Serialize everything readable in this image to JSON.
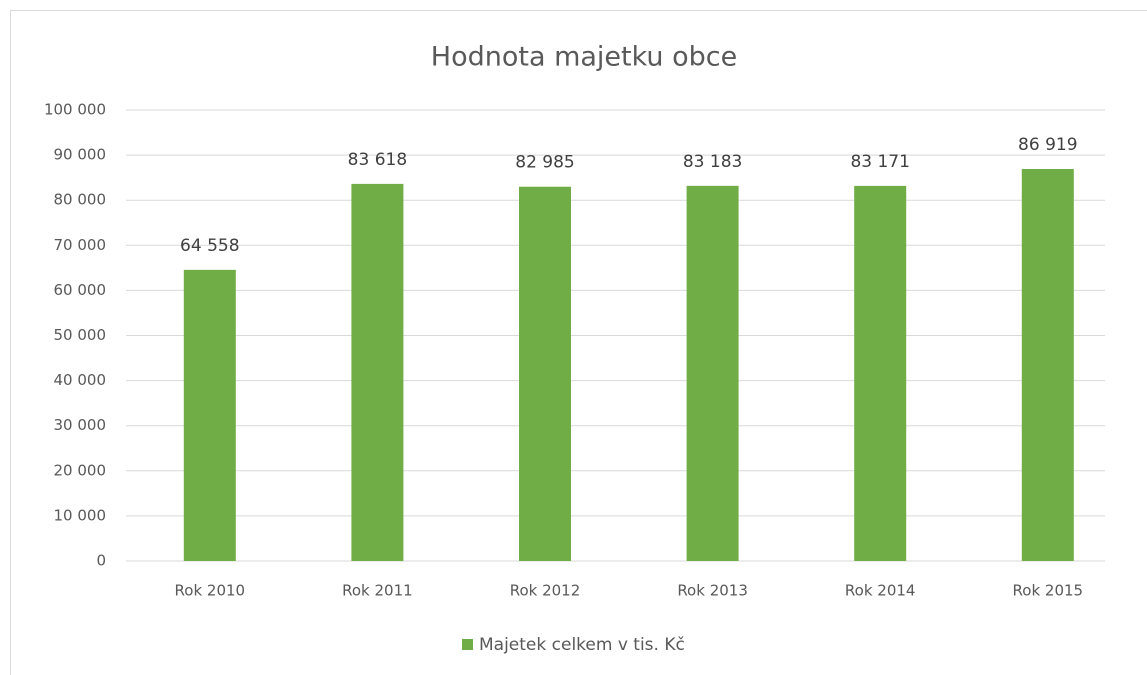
{
  "chart_data": {
    "type": "bar",
    "title": "Hodnota majetku obce",
    "categories": [
      "Rok 2010",
      "Rok 2011",
      "Rok 2012",
      "Rok 2013",
      "Rok 2014",
      "Rok 2015"
    ],
    "series": [
      {
        "name": "Majetek celkem v tis. Kč",
        "color": "#70ad47",
        "values": [
          64558,
          83618,
          82985,
          83183,
          83171,
          86919
        ],
        "value_labels": [
          "64 558",
          "83 618",
          "82 985",
          "83 183",
          "83 171",
          "86 919"
        ]
      }
    ],
    "ylim": [
      0,
      100000
    ],
    "yticks": [
      0,
      {
        "value": 10000,
        "label": "10 000"
      },
      {
        "value": 20000,
        "label": "20 000"
      },
      {
        "value": 30000,
        "label": "30 000"
      },
      {
        "value": 40000,
        "label": "40 000"
      },
      {
        "value": 50000,
        "label": "50 000"
      },
      {
        "value": 60000,
        "label": "60 000"
      },
      {
        "value": 70000,
        "label": "70 000"
      },
      {
        "value": 80000,
        "label": "80 000"
      },
      {
        "value": 90000,
        "label": "90 000"
      },
      {
        "value": 100000,
        "label": "100 000"
      }
    ],
    "grid": true,
    "legend": "bottom"
  }
}
